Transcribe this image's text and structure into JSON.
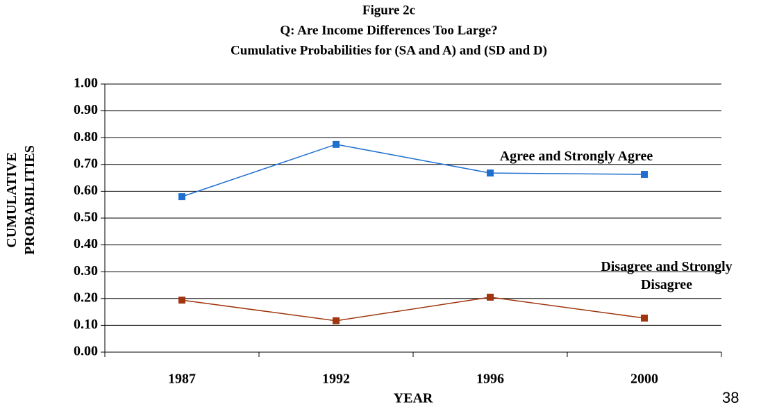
{
  "chart_data": {
    "type": "line",
    "title": [
      "Figure 2c",
      "Q: Are Income Differences Too Large?",
      "Cumulative Probabilities for (SA and A) and (SD and D)"
    ],
    "x_label": "YEAR",
    "y_label": "CUMULATIVE PROBABILITIES",
    "categories": [
      "1987",
      "1992",
      "1996",
      "2000"
    ],
    "series": [
      {
        "name": "Agree and Strongly Agree",
        "color": "#1f6fcf",
        "values": [
          0.58,
          0.775,
          0.668,
          0.663
        ]
      },
      {
        "name": "Disagree and Strongly Disagree",
        "color": "#a0350f",
        "values": [
          0.194,
          0.117,
          0.205,
          0.127
        ]
      }
    ],
    "ylim": [
      0,
      1
    ],
    "yticks": [
      {
        "value": 0,
        "label": "0.00"
      },
      {
        "value": 0.1,
        "label": "0.10"
      },
      {
        "value": 0.2,
        "label": "0.20"
      },
      {
        "value": 0.3,
        "label": "0.30"
      },
      {
        "value": 0.4,
        "label": "0.40"
      },
      {
        "value": 0.5,
        "label": "0.50"
      },
      {
        "value": 0.6,
        "label": "0.60"
      },
      {
        "value": 0.7,
        "label": "0.70"
      },
      {
        "value": 0.8,
        "label": "0.80"
      },
      {
        "value": 0.9,
        "label": "0.90"
      },
      {
        "value": 1,
        "label": "1.00"
      }
    ],
    "grid": true,
    "page_number": "38"
  }
}
